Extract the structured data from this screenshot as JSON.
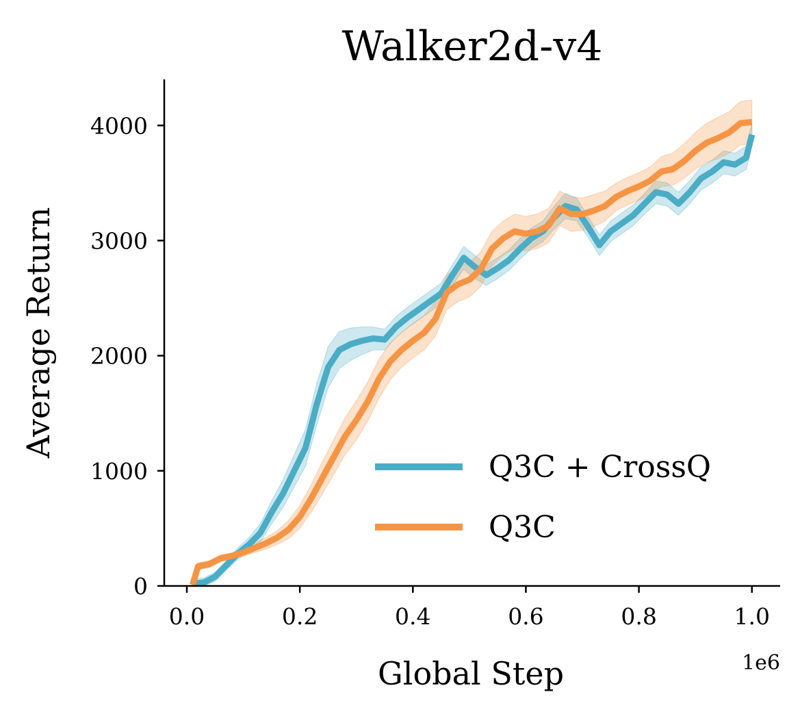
{
  "chart_data": {
    "type": "line",
    "title": "Walker2d-v4",
    "xlabel": "Global Step",
    "ylabel": "Average Return",
    "x_multiplier": "1e6",
    "xlim": [
      -0.04,
      1.05
    ],
    "ylim": [
      0,
      4400
    ],
    "xticks": [
      "0.0",
      "0.2",
      "0.4",
      "0.6",
      "0.8",
      "1.0"
    ],
    "yticks": [
      "0",
      "1000",
      "2000",
      "3000",
      "4000"
    ],
    "grid": false,
    "legend_position": "lower-right",
    "series": [
      {
        "name": "Q3C + CrossQ",
        "color": "#4bacc6",
        "x": [
          0.01,
          0.03,
          0.05,
          0.07,
          0.09,
          0.11,
          0.13,
          0.15,
          0.17,
          0.19,
          0.21,
          0.23,
          0.25,
          0.27,
          0.29,
          0.31,
          0.33,
          0.35,
          0.37,
          0.39,
          0.41,
          0.43,
          0.45,
          0.47,
          0.49,
          0.51,
          0.53,
          0.55,
          0.57,
          0.59,
          0.61,
          0.63,
          0.65,
          0.67,
          0.69,
          0.71,
          0.73,
          0.75,
          0.77,
          0.79,
          0.81,
          0.83,
          0.85,
          0.87,
          0.89,
          0.91,
          0.93,
          0.95,
          0.97,
          0.99,
          1.0
        ],
        "y": [
          20,
          30,
          80,
          180,
          280,
          360,
          460,
          640,
          800,
          1000,
          1200,
          1580,
          1900,
          2050,
          2100,
          2130,
          2150,
          2140,
          2250,
          2330,
          2400,
          2470,
          2540,
          2700,
          2850,
          2770,
          2700,
          2760,
          2830,
          2930,
          3020,
          3080,
          3200,
          3300,
          3270,
          3120,
          2960,
          3080,
          3150,
          3220,
          3320,
          3420,
          3400,
          3320,
          3420,
          3540,
          3600,
          3680,
          3660,
          3720,
          3920
        ],
        "band": [
          40,
          40,
          40,
          40,
          50,
          60,
          80,
          100,
          120,
          140,
          160,
          180,
          180,
          160,
          140,
          120,
          100,
          90,
          90,
          90,
          90,
          90,
          90,
          90,
          100,
          100,
          90,
          90,
          90,
          90,
          90,
          90,
          100,
          110,
          100,
          90,
          90,
          90,
          90,
          90,
          90,
          100,
          100,
          100,
          100,
          100,
          100,
          100,
          100,
          100,
          100
        ]
      },
      {
        "name": "Q3C",
        "color": "#f59443",
        "x": [
          0.01,
          0.02,
          0.04,
          0.06,
          0.08,
          0.1,
          0.12,
          0.14,
          0.16,
          0.18,
          0.2,
          0.22,
          0.24,
          0.26,
          0.28,
          0.3,
          0.32,
          0.34,
          0.36,
          0.38,
          0.4,
          0.42,
          0.44,
          0.46,
          0.48,
          0.5,
          0.52,
          0.54,
          0.56,
          0.58,
          0.6,
          0.62,
          0.64,
          0.66,
          0.68,
          0.7,
          0.72,
          0.74,
          0.76,
          0.78,
          0.8,
          0.82,
          0.84,
          0.86,
          0.88,
          0.9,
          0.92,
          0.94,
          0.96,
          0.98,
          1.0
        ],
        "y": [
          10,
          170,
          190,
          240,
          260,
          290,
          330,
          370,
          420,
          490,
          600,
          760,
          940,
          1120,
          1300,
          1440,
          1600,
          1800,
          1950,
          2050,
          2130,
          2200,
          2320,
          2550,
          2620,
          2660,
          2750,
          2930,
          3020,
          3080,
          3060,
          3080,
          3130,
          3280,
          3230,
          3230,
          3260,
          3300,
          3380,
          3430,
          3470,
          3520,
          3600,
          3620,
          3690,
          3780,
          3850,
          3890,
          3940,
          4020,
          4030
        ],
        "band": [
          30,
          30,
          30,
          30,
          30,
          30,
          40,
          50,
          60,
          80,
          100,
          120,
          140,
          150,
          160,
          170,
          170,
          170,
          160,
          150,
          150,
          150,
          150,
          150,
          150,
          150,
          150,
          150,
          150,
          150,
          150,
          150,
          150,
          150,
          150,
          140,
          140,
          130,
          120,
          120,
          120,
          120,
          130,
          140,
          150,
          160,
          170,
          180,
          180,
          190,
          190
        ]
      }
    ]
  }
}
